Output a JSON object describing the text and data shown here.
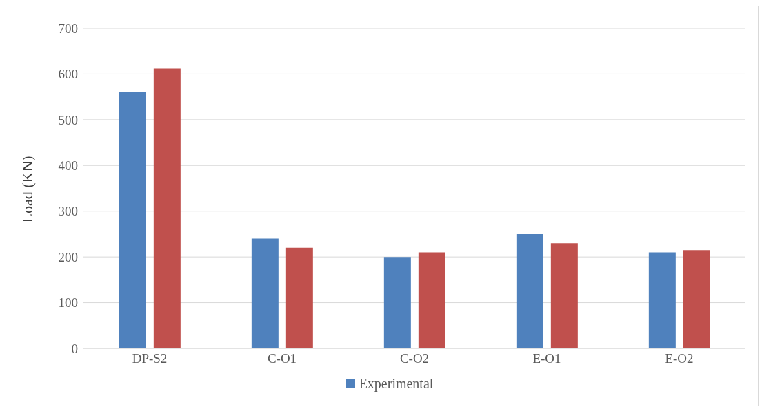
{
  "chart_data": {
    "type": "bar",
    "ylabel": "Load (KN)",
    "categories": [
      "DP-S2",
      "C-O1",
      "C-O2",
      "E-O1",
      "E-O2"
    ],
    "series": [
      {
        "name": "Experimental",
        "color": "#4f81bd",
        "values": [
          560,
          240,
          200,
          250,
          210
        ]
      },
      {
        "color": "#c0504d",
        "values": [
          612,
          220,
          210,
          230,
          215
        ]
      }
    ],
    "ylim": [
      0,
      700
    ],
    "yticks": [
      0,
      100,
      200,
      300,
      400,
      500,
      600,
      700
    ],
    "grid": "y",
    "legend": "bottom"
  }
}
